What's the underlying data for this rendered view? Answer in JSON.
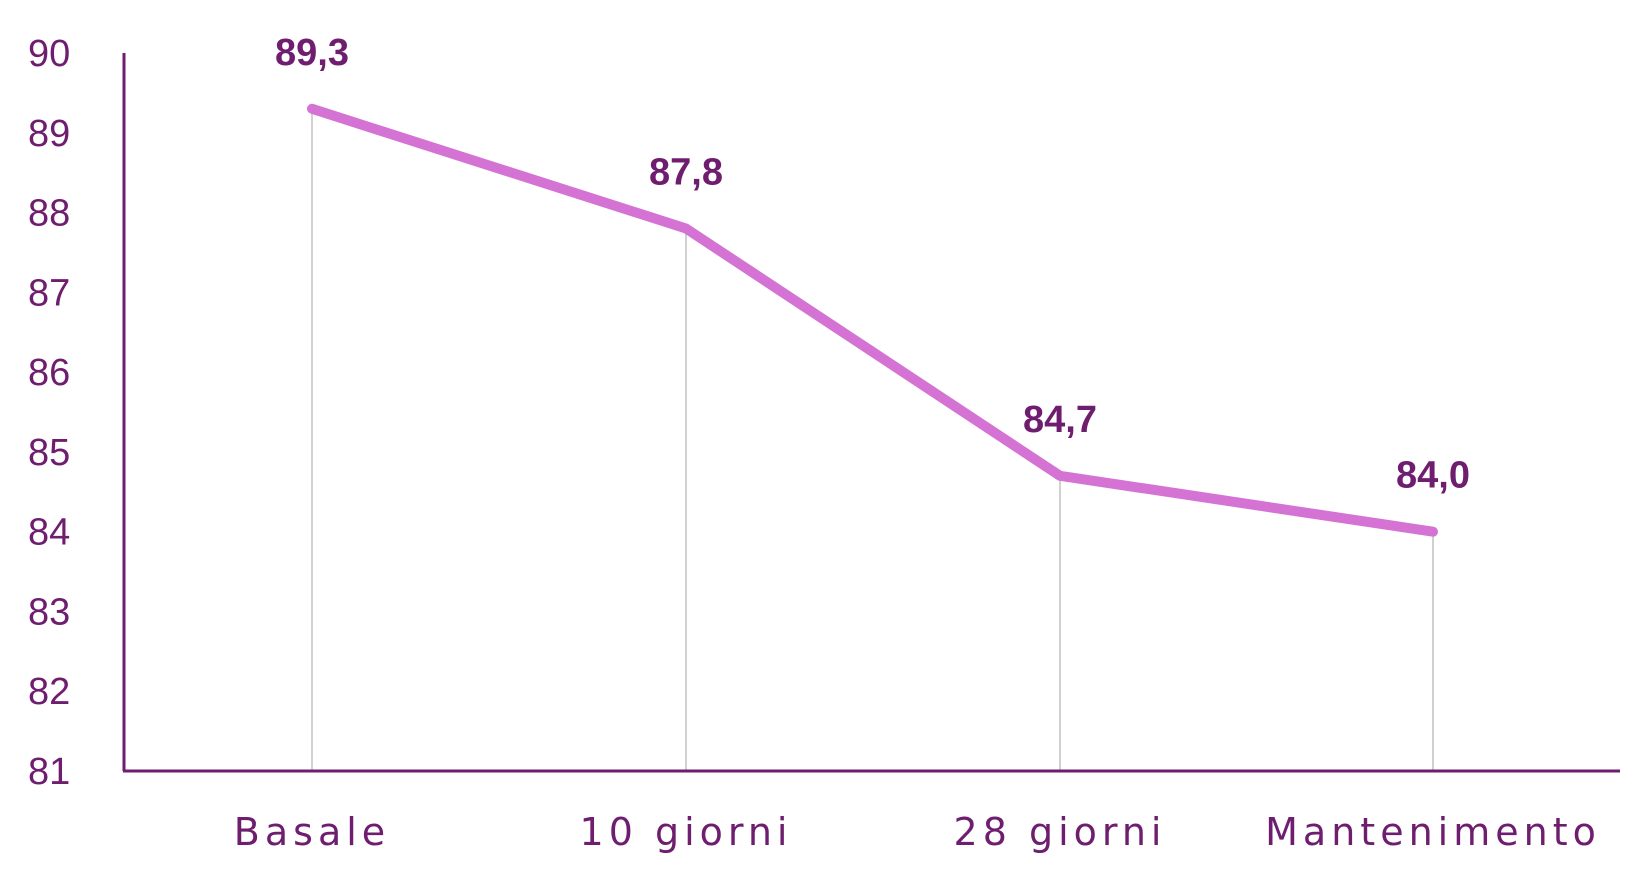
{
  "chart_data": {
    "type": "line",
    "title": "",
    "xlabel": "",
    "ylabel": "",
    "categories": [
      "Basale",
      "10 giorni",
      "28 giorni",
      "Mantenimento"
    ],
    "series": [
      {
        "values": [
          89.3,
          87.8,
          84.7,
          84.0
        ],
        "data_labels": [
          "89,3",
          "87,8",
          "84,7",
          "84,0"
        ]
      }
    ],
    "ylim": [
      81,
      90
    ],
    "y_ticks": [
      "90",
      "89",
      "88",
      "87",
      "86",
      "85",
      "84",
      "83",
      "82",
      "81"
    ],
    "drop_lines": true,
    "grid": false,
    "legend": "none",
    "colors": {
      "line": "#d473d4",
      "axis": "#6f1d6f",
      "text": "#6f1d6f",
      "drop_line": "#d0d0d0"
    }
  }
}
